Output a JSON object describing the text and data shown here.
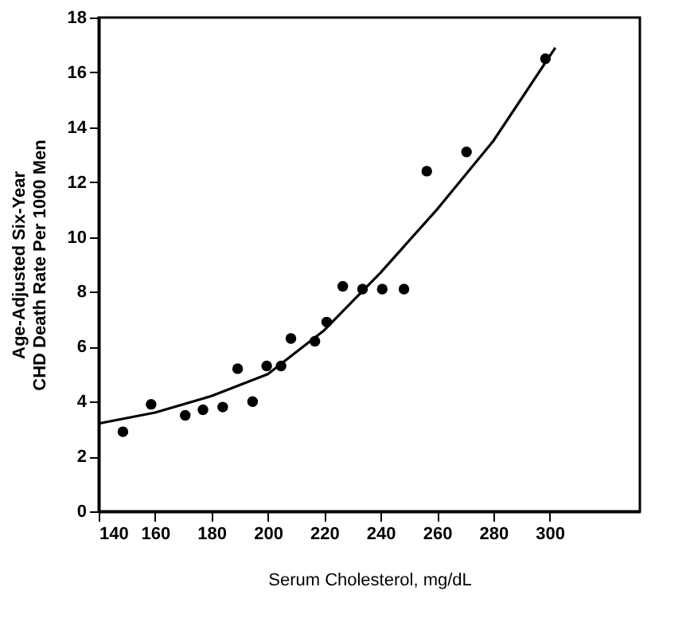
{
  "chart_data": {
    "type": "scatter",
    "xlabel": "Serum Cholesterol, mg/dL",
    "ylabel": [
      "Age-Adjusted Six-Year",
      "CHD Death Rate Per 1000 Men"
    ],
    "xlim": [
      140,
      332
    ],
    "ylim": [
      0,
      18
    ],
    "xticks": [
      140,
      160,
      180,
      200,
      220,
      240,
      260,
      280,
      300
    ],
    "yticks": [
      0,
      2,
      4,
      6,
      8,
      10,
      12,
      14,
      16,
      18
    ],
    "grid": false,
    "marker": "circle",
    "series": [
      {
        "type": "scatter",
        "color": "#000000",
        "x": [
          148.6,
          158.6,
          170.7,
          177,
          184,
          189.3,
          194.6,
          199.6,
          204.7,
          208.2,
          216.7,
          220.9,
          226.6,
          233.6,
          240.6,
          248.3,
          256.4,
          270.5,
          298.5
        ],
        "values": [
          2.9,
          3.9,
          3.5,
          3.7,
          3.8,
          5.2,
          4.0,
          5.3,
          5.3,
          6.3,
          6.2,
          6.9,
          8.2,
          8.1,
          8.1,
          8.1,
          12.4,
          13.1,
          16.5
        ]
      },
      {
        "type": "line",
        "color": "#000000",
        "marker": "none",
        "x": [
          140,
          160,
          180,
          200,
          220,
          240,
          260,
          280,
          302
        ],
        "values": [
          3.2,
          3.6,
          4.2,
          5.0,
          6.6,
          8.7,
          11.0,
          13.5,
          16.9
        ]
      }
    ]
  }
}
